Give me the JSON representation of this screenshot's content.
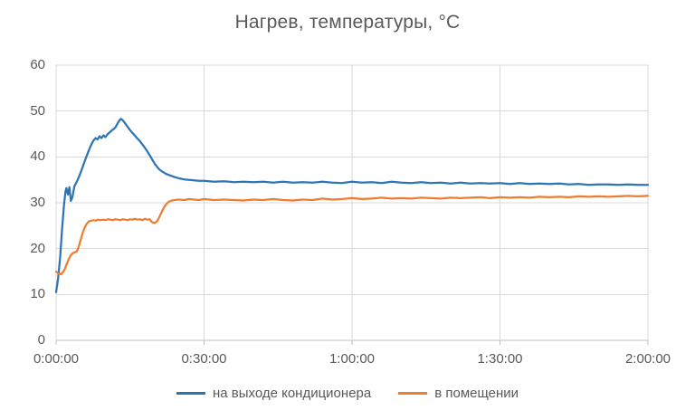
{
  "chart_data": {
    "type": "line",
    "title": "Нагрев, температуры, °C",
    "xlabel": "",
    "ylabel": "",
    "x_unit": "minutes",
    "xlim": [
      0,
      120
    ],
    "ylim": [
      0,
      60
    ],
    "grid": true,
    "legend_position": "bottom",
    "xticks": [
      0,
      30,
      60,
      90,
      120
    ],
    "xticklabels": [
      "0:00:00",
      "0:30:00",
      "1:00:00",
      "1:30:00",
      "2:00:00"
    ],
    "yticks": [
      0,
      10,
      20,
      30,
      40,
      50,
      60
    ],
    "yticklabels": [
      "0",
      "10",
      "20",
      "30",
      "40",
      "50",
      "60"
    ],
    "colors": {
      "grid": "#D9D9D9",
      "axis": "#BFBFBF",
      "text": "#595959",
      "background": "#FFFFFF"
    },
    "series": [
      {
        "name": "на выходе кондиционера",
        "color": "#2E75B6",
        "points": [
          [
            0,
            10.5
          ],
          [
            0.4,
            13.5
          ],
          [
            0.8,
            18
          ],
          [
            1.2,
            24
          ],
          [
            1.6,
            29.5
          ],
          [
            1.9,
            32.5
          ],
          [
            2.1,
            33.2
          ],
          [
            2.4,
            31.8
          ],
          [
            2.7,
            33.4
          ],
          [
            3,
            30.4
          ],
          [
            3.3,
            31.2
          ],
          [
            3.7,
            33.6
          ],
          [
            4.2,
            34.6
          ],
          [
            4.7,
            35.8
          ],
          [
            5.2,
            37.2
          ],
          [
            5.7,
            38.8
          ],
          [
            6.2,
            40.2
          ],
          [
            6.7,
            41.6
          ],
          [
            7.2,
            42.8
          ],
          [
            7.6,
            43.6
          ],
          [
            8,
            44.1
          ],
          [
            8.4,
            43.8
          ],
          [
            8.8,
            44.5
          ],
          [
            9.2,
            44.1
          ],
          [
            9.6,
            44.7
          ],
          [
            10,
            44.3
          ],
          [
            10.4,
            44.9
          ],
          [
            10.8,
            45.3
          ],
          [
            11.2,
            45.7
          ],
          [
            11.6,
            46
          ],
          [
            12,
            46.4
          ],
          [
            12.4,
            47.2
          ],
          [
            12.8,
            47.9
          ],
          [
            13.1,
            48.3
          ],
          [
            13.4,
            48.1
          ],
          [
            13.8,
            47.6
          ],
          [
            14.2,
            47
          ],
          [
            14.6,
            46.4
          ],
          [
            15,
            45.8
          ],
          [
            15.5,
            45.2
          ],
          [
            16,
            44.6
          ],
          [
            16.5,
            44
          ],
          [
            17,
            43.4
          ],
          [
            17.5,
            42.7
          ],
          [
            18,
            42
          ],
          [
            18.5,
            41.2
          ],
          [
            19,
            40.3
          ],
          [
            19.5,
            39.4
          ],
          [
            20,
            38.5
          ],
          [
            20.5,
            37.8
          ],
          [
            21,
            37.2
          ],
          [
            21.5,
            36.8
          ],
          [
            22,
            36.5
          ],
          [
            22.5,
            36.2
          ],
          [
            23,
            36
          ],
          [
            23.5,
            35.8
          ],
          [
            24,
            35.6
          ],
          [
            25,
            35.3
          ],
          [
            26,
            35.1
          ],
          [
            27,
            35
          ],
          [
            28,
            34.9
          ],
          [
            29,
            34.8
          ],
          [
            30,
            34.8
          ],
          [
            32,
            34.6
          ],
          [
            34,
            34.7
          ],
          [
            36,
            34.5
          ],
          [
            38,
            34.6
          ],
          [
            40,
            34.5
          ],
          [
            42,
            34.6
          ],
          [
            44,
            34.4
          ],
          [
            46,
            34.6
          ],
          [
            48,
            34.4
          ],
          [
            50,
            34.5
          ],
          [
            52,
            34.4
          ],
          [
            54,
            34.6
          ],
          [
            56,
            34.4
          ],
          [
            58,
            34.3
          ],
          [
            60,
            34.6
          ],
          [
            62,
            34.4
          ],
          [
            64,
            34.5
          ],
          [
            66,
            34.3
          ],
          [
            68,
            34.6
          ],
          [
            70,
            34.4
          ],
          [
            72,
            34.3
          ],
          [
            74,
            34.5
          ],
          [
            76,
            34.3
          ],
          [
            78,
            34.4
          ],
          [
            80,
            34.2
          ],
          [
            82,
            34.4
          ],
          [
            84,
            34.2
          ],
          [
            86,
            34.3
          ],
          [
            88,
            34.2
          ],
          [
            90,
            34.3
          ],
          [
            92,
            34.1
          ],
          [
            94,
            34.3
          ],
          [
            96,
            34.1
          ],
          [
            98,
            34.2
          ],
          [
            100,
            34.1
          ],
          [
            102,
            34.2
          ],
          [
            104,
            34
          ],
          [
            106,
            34.1
          ],
          [
            108,
            33.9
          ],
          [
            110,
            34
          ],
          [
            112,
            34
          ],
          [
            114,
            33.9
          ],
          [
            116,
            34
          ],
          [
            118,
            33.9
          ],
          [
            120,
            33.9
          ]
        ]
      },
      {
        "name": "в помещении",
        "color": "#ED7D31",
        "points": [
          [
            0,
            15
          ],
          [
            0.3,
            14.7
          ],
          [
            0.6,
            14.5
          ],
          [
            1,
            14.4
          ],
          [
            1.4,
            14.9
          ],
          [
            1.8,
            15.6
          ],
          [
            2.2,
            16.8
          ],
          [
            2.6,
            17.8
          ],
          [
            3,
            18.6
          ],
          [
            3.4,
            19
          ],
          [
            3.8,
            19.2
          ],
          [
            4.2,
            19.4
          ],
          [
            4.6,
            20.5
          ],
          [
            5,
            22
          ],
          [
            5.4,
            23.5
          ],
          [
            5.8,
            24.6
          ],
          [
            6.2,
            25.4
          ],
          [
            6.6,
            25.9
          ],
          [
            7,
            26.1
          ],
          [
            7.5,
            26.2
          ],
          [
            8,
            26.1
          ],
          [
            8.5,
            26.3
          ],
          [
            9,
            26.2
          ],
          [
            9.5,
            26.3
          ],
          [
            10,
            26.2
          ],
          [
            10.5,
            26.4
          ],
          [
            11,
            26.3
          ],
          [
            11.5,
            26.2
          ],
          [
            12,
            26.4
          ],
          [
            12.5,
            26.3
          ],
          [
            13,
            26.2
          ],
          [
            13.5,
            26.4
          ],
          [
            14,
            26.3
          ],
          [
            14.5,
            26.2
          ],
          [
            15,
            26.4
          ],
          [
            15.5,
            26.3
          ],
          [
            16,
            26.5
          ],
          [
            16.5,
            26.3
          ],
          [
            17,
            26.4
          ],
          [
            17.5,
            26.2
          ],
          [
            18,
            26.5
          ],
          [
            18.5,
            26.3
          ],
          [
            19,
            26.4
          ],
          [
            19.3,
            25.9
          ],
          [
            19.6,
            25.7
          ],
          [
            20,
            25.6
          ],
          [
            20.4,
            25.9
          ],
          [
            20.8,
            26.6
          ],
          [
            21.2,
            27.5
          ],
          [
            21.6,
            28.4
          ],
          [
            22,
            29.2
          ],
          [
            22.5,
            29.9
          ],
          [
            23,
            30.3
          ],
          [
            23.5,
            30.5
          ],
          [
            24,
            30.6
          ],
          [
            25,
            30.7
          ],
          [
            26,
            30.6
          ],
          [
            27,
            30.8
          ],
          [
            28,
            30.7
          ],
          [
            29,
            30.6
          ],
          [
            30,
            30.8
          ],
          [
            32,
            30.6
          ],
          [
            34,
            30.7
          ],
          [
            36,
            30.6
          ],
          [
            38,
            30.5
          ],
          [
            40,
            30.7
          ],
          [
            42,
            30.6
          ],
          [
            44,
            30.8
          ],
          [
            46,
            30.6
          ],
          [
            48,
            30.5
          ],
          [
            50,
            30.7
          ],
          [
            52,
            30.6
          ],
          [
            54,
            30.9
          ],
          [
            56,
            30.7
          ],
          [
            58,
            30.8
          ],
          [
            60,
            31
          ],
          [
            62,
            30.8
          ],
          [
            64,
            30.9
          ],
          [
            66,
            31.1
          ],
          [
            68,
            30.9
          ],
          [
            70,
            31
          ],
          [
            72,
            30.9
          ],
          [
            74,
            31.1
          ],
          [
            76,
            31
          ],
          [
            78,
            30.9
          ],
          [
            80,
            31.1
          ],
          [
            82,
            31
          ],
          [
            84,
            31.1
          ],
          [
            86,
            31.2
          ],
          [
            88,
            31
          ],
          [
            90,
            31.2
          ],
          [
            92,
            31.1
          ],
          [
            94,
            31.2
          ],
          [
            96,
            31.1
          ],
          [
            98,
            31.3
          ],
          [
            100,
            31.2
          ],
          [
            102,
            31.3
          ],
          [
            104,
            31.2
          ],
          [
            106,
            31.4
          ],
          [
            108,
            31.3
          ],
          [
            110,
            31.4
          ],
          [
            112,
            31.3
          ],
          [
            114,
            31.4
          ],
          [
            116,
            31.5
          ],
          [
            118,
            31.4
          ],
          [
            120,
            31.5
          ]
        ]
      }
    ]
  }
}
